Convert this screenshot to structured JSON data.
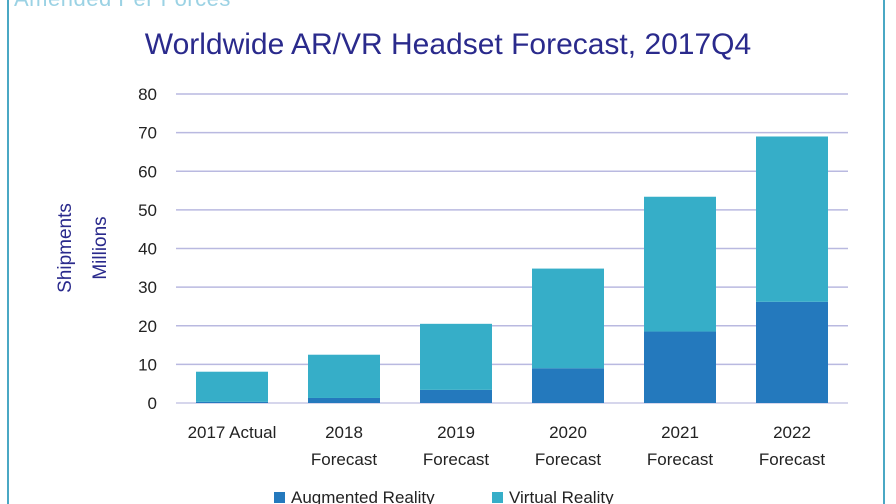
{
  "header": {
    "top_strip_text": "Amended Per Forces"
  },
  "chart_data": {
    "type": "bar",
    "stacked": true,
    "title": "Worldwide AR/VR Headset Forecast, 2017Q4",
    "ylabel_line1": "Shipments",
    "ylabel_line2": "Millions",
    "ylim": [
      0,
      80
    ],
    "yticks": [
      0,
      10,
      20,
      30,
      40,
      50,
      60,
      70,
      80
    ],
    "grid": true,
    "legend_position": "bottom",
    "categories": [
      [
        "2017 Actual"
      ],
      [
        "2018",
        "Forecast"
      ],
      [
        "2019",
        "Forecast"
      ],
      [
        "2020",
        "Forecast"
      ],
      [
        "2021",
        "Forecast"
      ],
      [
        "2022",
        "Forecast"
      ]
    ],
    "series": [
      {
        "name": "Augmented Reality",
        "color": "#2479bd",
        "values": [
          0.3,
          1.3,
          3.4,
          9.0,
          18.5,
          26.2
        ]
      },
      {
        "name": "Virtual Reality",
        "color": "#36aec8",
        "values": [
          7.8,
          11.2,
          17.1,
          25.8,
          34.9,
          42.8
        ]
      }
    ]
  }
}
